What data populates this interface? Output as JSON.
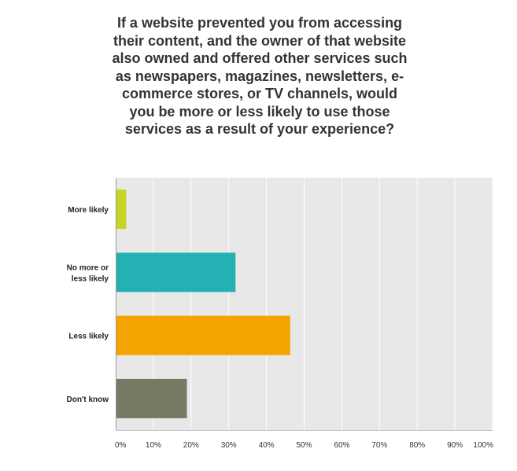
{
  "chart_data": {
    "type": "bar",
    "orientation": "horizontal",
    "title_lines": [
      "If a website prevented you from accessing",
      "their content, and the owner of that website",
      "also owned and offered other services such",
      "as newspapers, magazines, newsletters, e-",
      "commerce stores, or TV channels, would",
      "you be more or less likely to use those",
      "services as a result of your experience?"
    ],
    "categories": [
      [
        "More likely"
      ],
      [
        "No more or",
        "less likely"
      ],
      [
        "Less likely"
      ],
      [
        "Don't know"
      ]
    ],
    "values": [
      2.8,
      31.8,
      46.3,
      18.9
    ],
    "colors": [
      "#c6d424",
      "#23b1b4",
      "#f5a300",
      "#767a64"
    ],
    "xlim": [
      0,
      100
    ],
    "xticks": [
      "0%",
      "10%",
      "20%",
      "30%",
      "40%",
      "50%",
      "60%",
      "70%",
      "80%",
      "90%",
      "100%"
    ],
    "grid": true,
    "plot_background": "#e8e8e8",
    "gridline_color": "#ffffff"
  }
}
